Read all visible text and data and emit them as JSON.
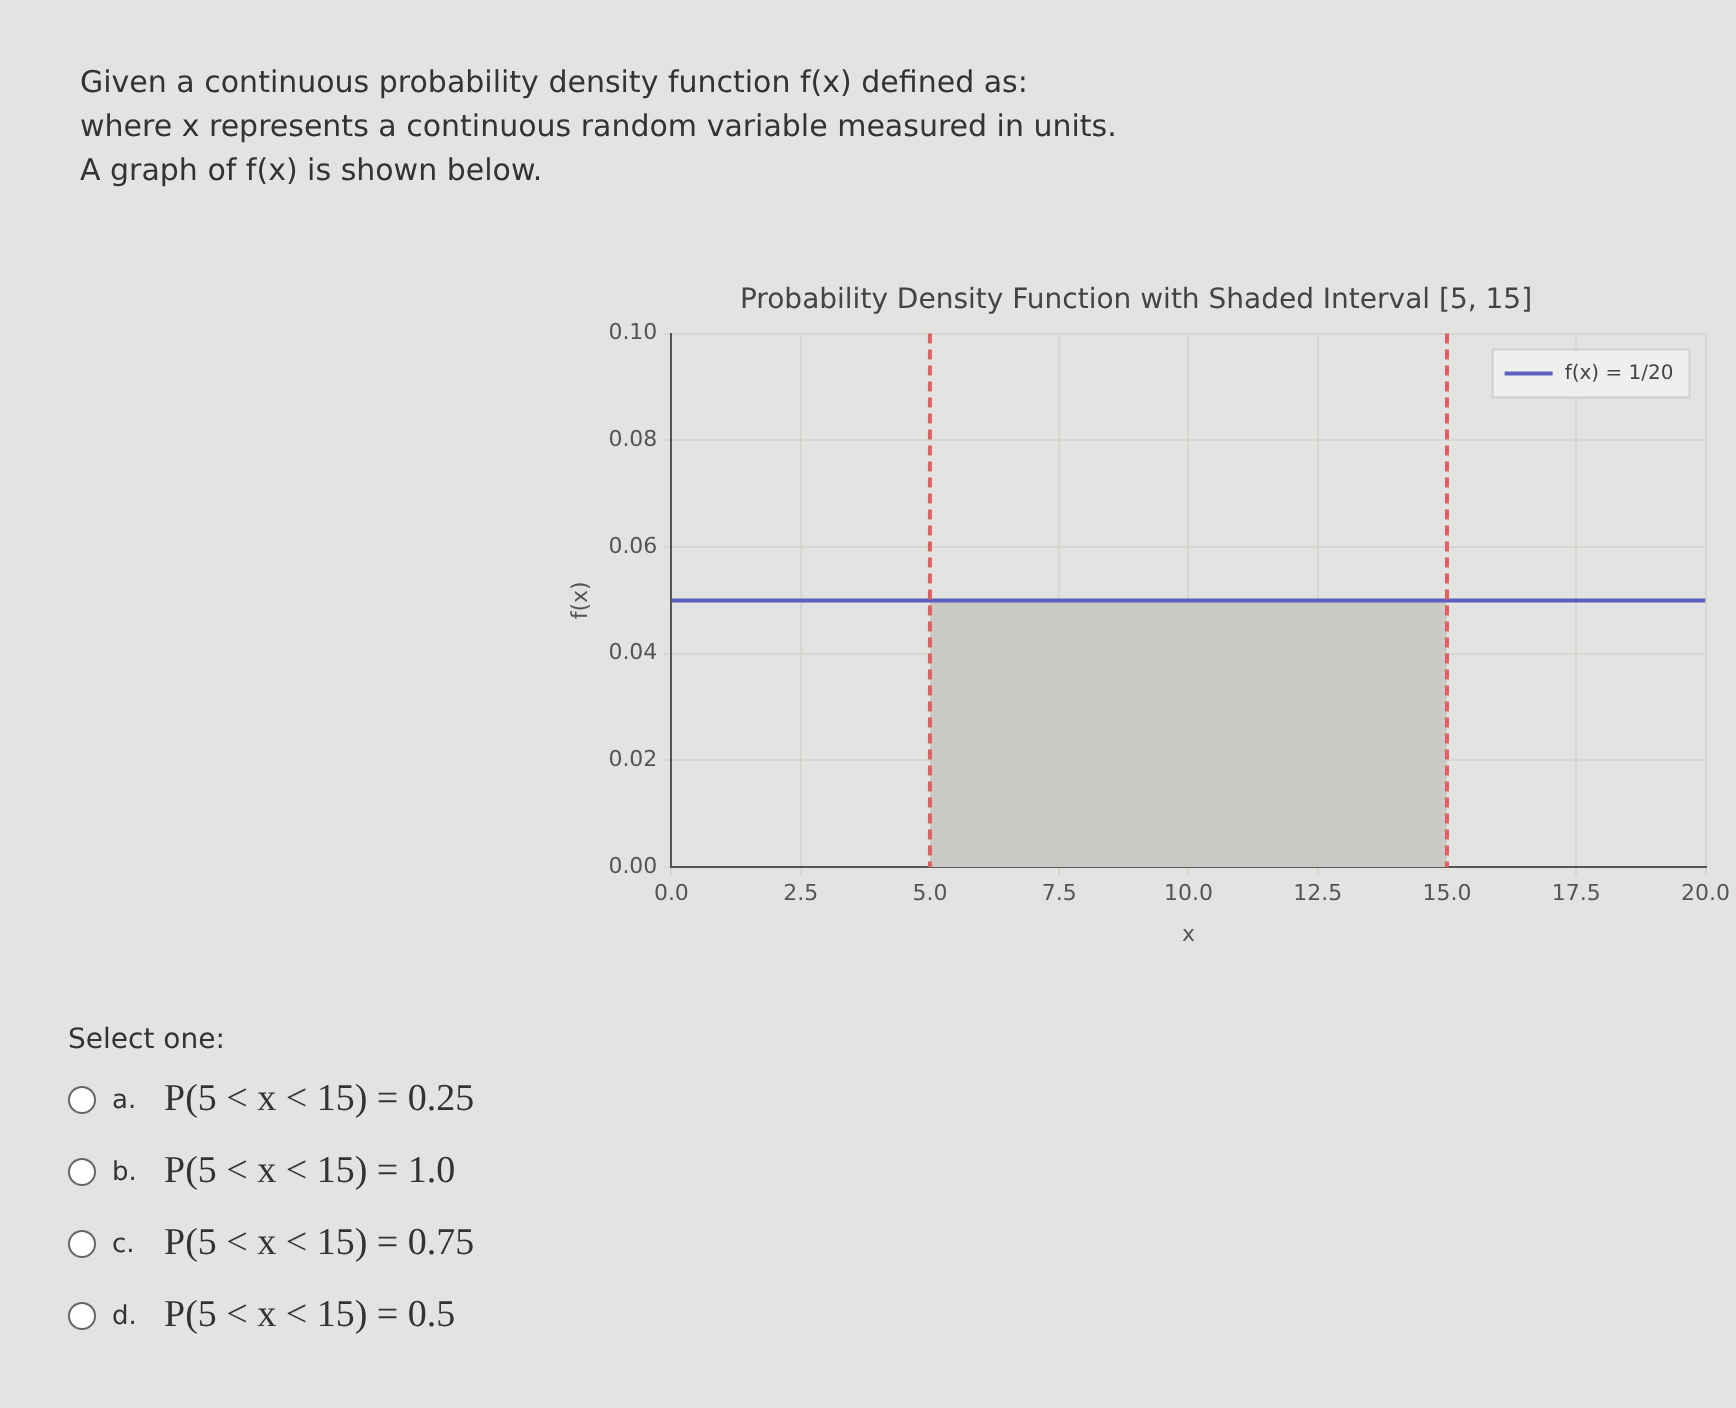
{
  "chart_data": {
    "type": "line",
    "title": "Probability Density Function with Shaded Interval [5, 15]",
    "xlabel": "x",
    "ylabel": "f(x)",
    "series": [
      {
        "name": "f(x) = 1/20",
        "color": "#5b5fbf",
        "x": [
          0,
          20
        ],
        "values": [
          0.05,
          0.05
        ]
      },
      {
        "type": "area",
        "color": "#c9cac6",
        "x": [
          5,
          15
        ],
        "values": [
          0.05,
          0.05
        ]
      }
    ],
    "ref_lines": [
      {
        "axis": "x",
        "value": 5,
        "color": "#e06060",
        "line_style": "dashed"
      },
      {
        "axis": "x",
        "value": 15,
        "color": "#e06060",
        "line_style": "dashed"
      }
    ],
    "xlim": [
      0,
      20
    ],
    "ylim": [
      0,
      0.1
    ],
    "xticks": [
      {
        "value": 0,
        "label": "0.0"
      },
      {
        "value": 2.5,
        "label": "2.5"
      },
      {
        "value": 5,
        "label": "5.0"
      },
      {
        "value": 7.5,
        "label": "7.5"
      },
      {
        "value": 10,
        "label": "10.0"
      },
      {
        "value": 12.5,
        "label": "12.5"
      },
      {
        "value": 15,
        "label": "15.0"
      },
      {
        "value": 17.5,
        "label": "17.5"
      },
      {
        "value": 20,
        "label": "20.0"
      }
    ],
    "yticks": [
      {
        "value": 0,
        "label": "0.00"
      },
      {
        "value": 0.02,
        "label": "0.02"
      },
      {
        "value": 0.04,
        "label": "0.04"
      },
      {
        "value": 0.06,
        "label": "0.06"
      },
      {
        "value": 0.08,
        "label": "0.08"
      },
      {
        "value": 0.1,
        "label": "0.10"
      }
    ],
    "grid": true,
    "legend": "top right",
    "annotations": [
      "Given a continuous probability density function f(x) defined as:",
      "where x represents a continuous random variable measured in units.",
      "A graph of f(x) is shown below.",
      "Select one:",
      "a. P(5 < x < 15) = 0.25",
      "b. P(5 < x < 15) = 1.0",
      "c. P(5 < x < 15) = 0.75",
      "d. P(5 < x < 15) = 0.5"
    ]
  }
}
